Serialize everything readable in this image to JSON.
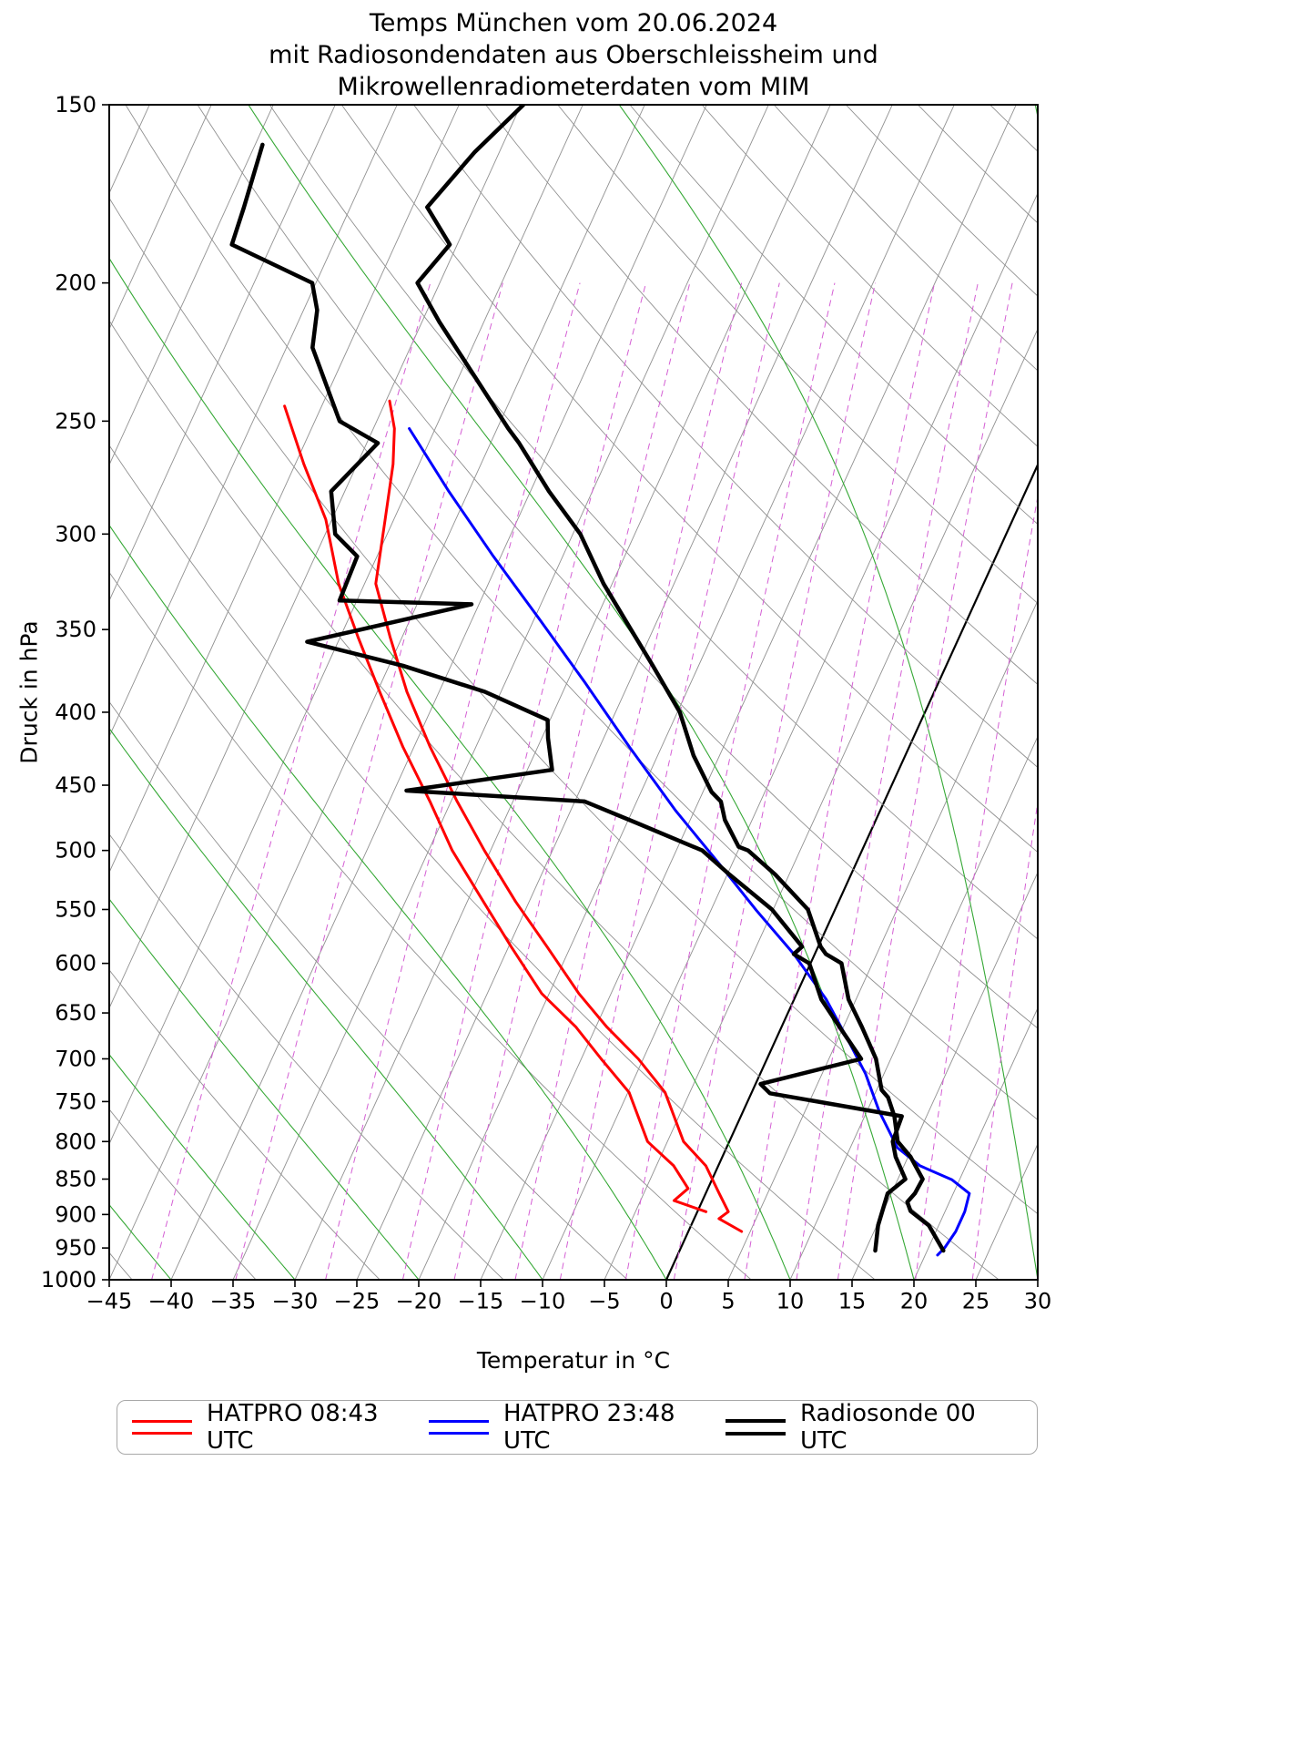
{
  "title": {
    "line1": "Temps München vom 20.06.2024",
    "line2": "mit Radiosondendaten aus Oberschleissheim und",
    "line3": "Mikrowellenradiometerdaten vom MIM"
  },
  "axes": {
    "x_label": "Temperatur in °C",
    "y_label": "Druck in hPa",
    "x_range": [
      -45,
      30
    ],
    "p_range": [
      1000,
      150
    ],
    "x_ticks": [
      -45,
      -40,
      -35,
      -30,
      -25,
      -20,
      -15,
      -10,
      -5,
      0,
      5,
      10,
      15,
      20,
      25,
      30
    ],
    "y_ticks": [
      150,
      200,
      250,
      300,
      350,
      400,
      450,
      500,
      550,
      600,
      650,
      700,
      750,
      800,
      850,
      900,
      950,
      1000
    ]
  },
  "legend": {
    "items": [
      {
        "label": "HATPRO 08:43 UTC",
        "color": "#ff0000",
        "lw": 3
      },
      {
        "label": "HATPRO 23:48 UTC",
        "color": "#0000ff",
        "lw": 3
      },
      {
        "label": "Radiosonde 00 UTC",
        "color": "#000000",
        "lw": 4
      }
    ]
  },
  "chart_data": {
    "type": "line",
    "variant": "skew-T log-p sounding diagram",
    "pressure_log_scale": true,
    "xlim": [
      -45,
      30
    ],
    "p_lim": [
      1000,
      150
    ],
    "skew_deg_per_decade": 52.5,
    "grid": {
      "isotherm_step_C": 5,
      "isotherm_range_C": [
        -120,
        45
      ],
      "isotherm_color": "#909090",
      "zero_isotherm_color": "#000000",
      "dry_adiabat_color": "#909090",
      "dry_adiabat_theta_K": [
        220,
        460,
        10
      ],
      "moist_adiabat_color": "#35a835",
      "moist_adiabats_start_C": [
        -60,
        -50,
        -40,
        -30,
        -20,
        -10,
        0,
        10,
        20,
        30,
        40
      ],
      "mixing_ratio_color": "#d45fd4",
      "mixing_ratios_g_kg": [
        0.1,
        0.2,
        0.4,
        0.7,
        1,
        1.5,
        2,
        3,
        4,
        6,
        8,
        10,
        15,
        20
      ]
    },
    "series": [
      {
        "name": "HATPRO 08:43 UTC Taupunkt",
        "color": "#ff0000",
        "width": 3,
        "points": [
          [
            896,
            0.7
          ],
          [
            880,
            -2.3
          ],
          [
            863,
            -1.6
          ],
          [
            832,
            -3.6
          ],
          [
            800,
            -6.6
          ],
          [
            739,
            -9.9
          ],
          [
            700,
            -13.4
          ],
          [
            665,
            -16.6
          ],
          [
            630,
            -20.6
          ],
          [
            584,
            -24.8
          ],
          [
            543,
            -28.7
          ],
          [
            500,
            -33.1
          ],
          [
            462,
            -36.7
          ],
          [
            423,
            -40.9
          ],
          [
            387,
            -44.8
          ],
          [
            354,
            -48.6
          ],
          [
            325,
            -52.1
          ],
          [
            293,
            -55.5
          ],
          [
            268,
            -59.3
          ],
          [
            244,
            -63.0
          ]
        ]
      },
      {
        "name": "HATPRO 08:43 UTC Temperatur",
        "color": "#ff0000",
        "width": 3,
        "points": [
          [
            925,
            4.3
          ],
          [
            906,
            2.0
          ],
          [
            896,
            2.5
          ],
          [
            870,
            1.1
          ],
          [
            832,
            -1.0
          ],
          [
            800,
            -3.7
          ],
          [
            739,
            -7.0
          ],
          [
            700,
            -10.4
          ],
          [
            665,
            -14.1
          ],
          [
            630,
            -17.6
          ],
          [
            584,
            -21.9
          ],
          [
            543,
            -26.1
          ],
          [
            500,
            -30.5
          ],
          [
            462,
            -34.5
          ],
          [
            423,
            -38.7
          ],
          [
            387,
            -42.6
          ],
          [
            354,
            -46.0
          ],
          [
            325,
            -49.1
          ],
          [
            293,
            -50.7
          ],
          [
            268,
            -52.1
          ],
          [
            253,
            -53.3
          ],
          [
            242,
            -54.7
          ]
        ]
      },
      {
        "name": "HATPRO 23:48 UTC Temperatur",
        "color": "#0000ff",
        "width": 3,
        "points": [
          [
            961,
            21.0
          ],
          [
            950,
            21.3
          ],
          [
            925,
            21.6
          ],
          [
            896,
            21.6
          ],
          [
            870,
            21.3
          ],
          [
            851,
            19.4
          ],
          [
            832,
            16.3
          ],
          [
            808,
            13.8
          ],
          [
            762,
            11.0
          ],
          [
            717,
            8.5
          ],
          [
            677,
            5.7
          ],
          [
            636,
            2.6
          ],
          [
            591,
            -1.7
          ],
          [
            551,
            -6.3
          ],
          [
            512,
            -10.9
          ],
          [
            469,
            -16.5
          ],
          [
            423,
            -22.6
          ],
          [
            381,
            -28.6
          ],
          [
            344,
            -34.6
          ],
          [
            311,
            -40.6
          ],
          [
            280,
            -46.6
          ],
          [
            253,
            -52.1
          ]
        ]
      },
      {
        "name": "Radiosonde 00 UTC Taupunkt",
        "color": "#000000",
        "width": 4.5,
        "points": [
          [
            954,
            15.8
          ],
          [
            916,
            15.1
          ],
          [
            870,
            14.7
          ],
          [
            850,
            15.6
          ],
          [
            820,
            14.0
          ],
          [
            800,
            13.2
          ],
          [
            768,
            13.0
          ],
          [
            740,
            1.5
          ],
          [
            729,
            0.4
          ],
          [
            700,
            7.6
          ],
          [
            665,
            4.7
          ],
          [
            636,
            2.2
          ],
          [
            600,
            -0.1
          ],
          [
            591,
            -1.7
          ],
          [
            584,
            -1.3
          ],
          [
            550,
            -5.1
          ],
          [
            520,
            -9.8
          ],
          [
            500,
            -12.9
          ],
          [
            479,
            -19.0
          ],
          [
            462,
            -24.2
          ],
          [
            454,
            -39.0
          ],
          [
            439,
            -28.0
          ],
          [
            417,
            -29.5
          ],
          [
            405,
            -30.2
          ],
          [
            387,
            -36.3
          ],
          [
            371,
            -43.9
          ],
          [
            357,
            -52.5
          ],
          [
            336,
            -40.6
          ],
          [
            334,
            -51.4
          ],
          [
            311,
            -51.6
          ],
          [
            300,
            -54.2
          ],
          [
            280,
            -56.1
          ],
          [
            259,
            -54.1
          ],
          [
            250,
            -58.0
          ],
          [
            222,
            -62.9
          ],
          [
            209,
            -63.9
          ],
          [
            200,
            -65.3
          ],
          [
            188,
            -73.2
          ],
          [
            177,
            -73.6
          ],
          [
            160,
            -74.4
          ]
        ]
      },
      {
        "name": "Radiosonde 00 UTC Temperatur",
        "color": "#000000",
        "width": 4.5,
        "points": [
          [
            954,
            21.3
          ],
          [
            916,
            19.2
          ],
          [
            895,
            17.2
          ],
          [
            882,
            16.6
          ],
          [
            870,
            16.9
          ],
          [
            850,
            17.0
          ],
          [
            820,
            15.2
          ],
          [
            800,
            13.6
          ],
          [
            768,
            12.4
          ],
          [
            745,
            11.2
          ],
          [
            736,
            10.4
          ],
          [
            700,
            8.8
          ],
          [
            665,
            6.5
          ],
          [
            636,
            4.4
          ],
          [
            600,
            2.5
          ],
          [
            591,
            0.9
          ],
          [
            584,
            0.2
          ],
          [
            550,
            -2.2
          ],
          [
            520,
            -6.1
          ],
          [
            500,
            -9.2
          ],
          [
            497,
            -10.1
          ],
          [
            476,
            -12.2
          ],
          [
            462,
            -13.2
          ],
          [
            455,
            -14.3
          ],
          [
            429,
            -17.1
          ],
          [
            400,
            -19.8
          ],
          [
            371,
            -23.7
          ],
          [
            350,
            -26.8
          ],
          [
            325,
            -30.7
          ],
          [
            300,
            -34.4
          ],
          [
            280,
            -38.5
          ],
          [
            259,
            -42.7
          ],
          [
            253,
            -44.1
          ],
          [
            234,
            -48.4
          ],
          [
            213,
            -53.6
          ],
          [
            200,
            -56.8
          ],
          [
            188,
            -55.6
          ],
          [
            177,
            -58.8
          ],
          [
            162,
            -57.0
          ],
          [
            150,
            -54.8
          ]
        ]
      }
    ]
  }
}
